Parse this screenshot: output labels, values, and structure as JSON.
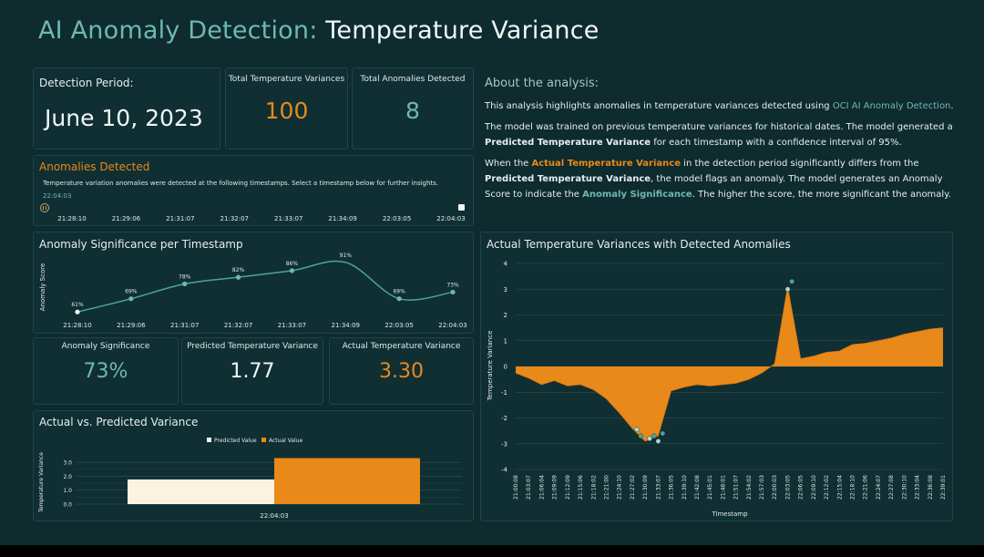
{
  "header": {
    "title_prefix": "AI Anomaly Detection:",
    "title_main": "Temperature Variance"
  },
  "detection": {
    "label": "Detection Period:",
    "date": "June 10, 2023"
  },
  "kpis": {
    "total_variances_label": "Total Temperature Variances",
    "total_variances": "100",
    "total_anomalies_label": "Total Anomalies Detected",
    "total_anomalies": "8"
  },
  "anomalies_panel": {
    "title": "Anomalies Detected",
    "description": "Temperature variation anomalies were detected at the following timestamps. Select a timestamp below for further insights.",
    "selected": "22:04:03",
    "timestamps": [
      "21:28:10",
      "21:29:06",
      "21:31:07",
      "21:32:07",
      "21:33:07",
      "21:34:09",
      "22:03:05",
      "22:04:03"
    ]
  },
  "about": {
    "heading": "About the analysis:",
    "p1_a": "This analysis highlights anomalies in temperature variances detected using ",
    "p1_b": "OCI AI Anomaly Detection",
    "p1_c": ".",
    "p2_a": "The model was trained on previous temperature variances for historical dates. The model generated a ",
    "p2_b": "Predicted Temperature Variance",
    "p2_c": " for each timestamp with a confidence interval of 95%.",
    "p3_a": "When the ",
    "p3_b": "Actual Temperature Variance",
    "p3_c": " in the detection period significantly differs from the ",
    "p3_d": "Predicted Temperature Variance",
    "p3_e": ", the model flags an anomaly. The model generates an Anomaly Score to indicate the ",
    "p3_f": "Anomaly Significance",
    "p3_g": ". The higher the score, the more significant the anomaly."
  },
  "metrics": {
    "significance_label": "Anomaly Significance",
    "significance": "73%",
    "predicted_label": "Predicted Temperature Variance",
    "predicted": "1.77",
    "actual_label": "Actual Temperature Variance",
    "actual": "3.30"
  },
  "colors": {
    "teal": "#6fb8b2",
    "orange": "#e8891a",
    "cream": "#fbf3e0",
    "bg": "#0e2b2e"
  },
  "chart_data": [
    {
      "type": "line",
      "title": "Anomaly Significance per Timestamp",
      "ylabel": "Anomaly Score",
      "categories": [
        "21:28:10",
        "21:29:06",
        "21:31:07",
        "21:32:07",
        "21:33:07",
        "21:34:09",
        "22:03:05",
        "22:04:03"
      ],
      "values": [
        61,
        69,
        78,
        82,
        86,
        91,
        69,
        73
      ],
      "data_labels": [
        "61%",
        "69%",
        "78%",
        "82%",
        "86%",
        "91%",
        "69%",
        "73%"
      ]
    },
    {
      "type": "bar",
      "title": "Actual vs. Predicted Variance",
      "ylabel": "Temperature Variance",
      "categories": [
        "22:04:03"
      ],
      "series": [
        {
          "name": "Predicted Value",
          "values": [
            1.77
          ]
        },
        {
          "name": "Actual Value",
          "values": [
            3.3
          ]
        }
      ],
      "yticks": [
        "0.0",
        "1.0",
        "2.0",
        "3.0"
      ],
      "ylim": [
        0,
        3.4
      ]
    },
    {
      "type": "area",
      "title": "Actual Temperature Variances with Detected Anomalies",
      "ylabel": "Temperature Variance",
      "xlabel": "Timestamp",
      "ylim": [
        -4,
        4
      ],
      "yticks": [
        "4",
        "3",
        "2",
        "1",
        "0",
        "-1",
        "-2",
        "-3",
        "-4"
      ],
      "x": [
        "21:00:08",
        "21:03:07",
        "21:06:04",
        "21:09:09",
        "21:12:09",
        "21:15:06",
        "21:18:02",
        "21:21:00",
        "21:24:10",
        "21:27:02",
        "21:30:09",
        "21:33:07",
        "21:36:05",
        "21:39:10",
        "21:42:08",
        "21:45:01",
        "21:48:01",
        "21:51:07",
        "21:54:02",
        "21:57:03",
        "22:00:03",
        "22:03:05",
        "22:06:05",
        "22:09:10",
        "22:12:02",
        "22:15:04",
        "22:18:10",
        "22:21:06",
        "22:24:07",
        "22:27:08",
        "22:30:10",
        "22:33:04",
        "22:36:08",
        "22:39:01"
      ],
      "values": [
        -0.25,
        -0.45,
        -0.7,
        -0.55,
        -0.75,
        -0.7,
        -0.9,
        -1.25,
        -1.8,
        -2.4,
        -2.9,
        -2.7,
        -0.95,
        -0.8,
        -0.7,
        -0.75,
        -0.7,
        -0.65,
        -0.5,
        -0.25,
        0.1,
        3.1,
        0.3,
        0.4,
        0.55,
        0.6,
        0.85,
        0.9,
        1.0,
        1.1,
        1.25,
        1.35,
        1.45,
        1.5
      ],
      "anomalies": [
        {
          "x": "21:28:10",
          "value": -2.45
        },
        {
          "x": "21:29:06",
          "value": -2.7
        },
        {
          "x": "21:31:07",
          "value": -2.8
        },
        {
          "x": "21:32:07",
          "value": -2.7
        },
        {
          "x": "21:33:07",
          "value": -2.9
        },
        {
          "x": "21:34:09",
          "value": -2.6
        },
        {
          "x": "22:03:05",
          "value": 3.0
        },
        {
          "x": "22:04:03",
          "value": 3.3
        }
      ]
    }
  ]
}
